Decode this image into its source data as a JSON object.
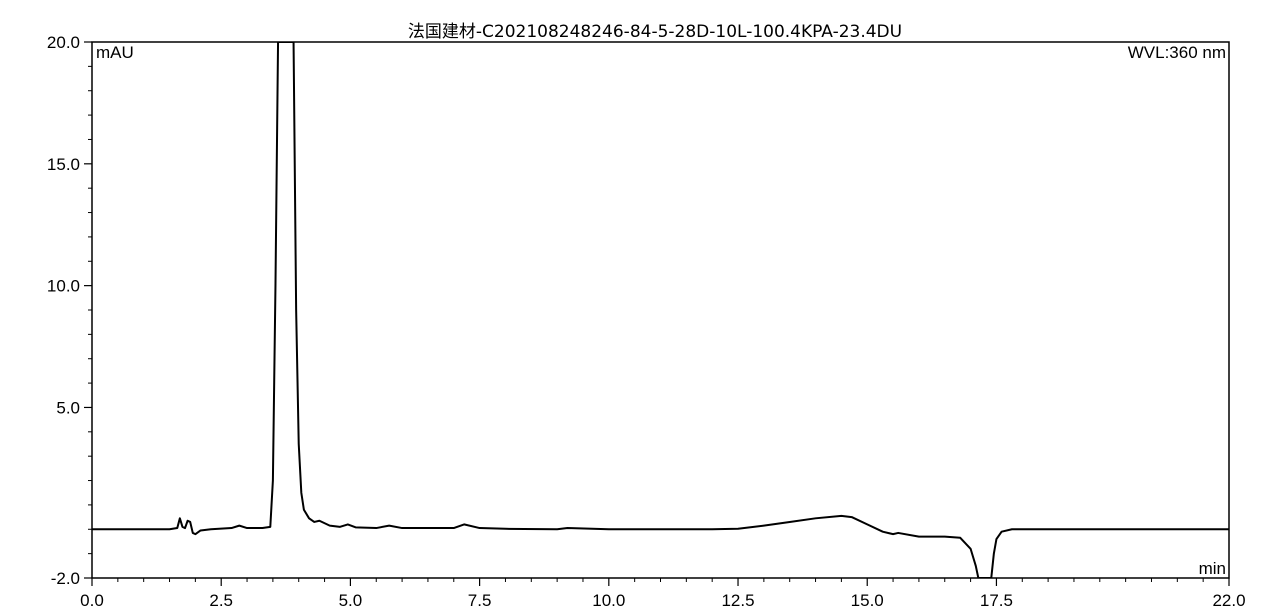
{
  "chart_data": {
    "type": "line",
    "title": "法国建材-C202108248246-84-5-28D-10L-100.4KPA-23.4DU",
    "y_unit": "mAU",
    "x_unit": "min",
    "wavelength_label": "WVL:360 nm",
    "xlim": [
      0,
      22
    ],
    "ylim": [
      -2,
      20
    ],
    "x_ticks": [
      "0.0",
      "2.5",
      "5.0",
      "7.5",
      "10.0",
      "12.5",
      "15.0",
      "17.5",
      "22.0"
    ],
    "x_tick_values": [
      0,
      2.5,
      5,
      7.5,
      10,
      12.5,
      15,
      17.5,
      22
    ],
    "y_ticks": [
      "20.0",
      "15.0",
      "10.0",
      "5.0",
      "-2.0"
    ],
    "y_tick_values": [
      20,
      15,
      10,
      5,
      -2
    ],
    "grid": false,
    "series": [
      {
        "line_color": "#000000",
        "x": [
          0,
          1.5,
          1.65,
          1.7,
          1.75,
          1.8,
          1.85,
          1.9,
          1.95,
          2.0,
          2.1,
          2.3,
          2.7,
          2.85,
          3.0,
          3.3,
          3.45,
          3.5,
          3.55,
          3.6,
          3.65,
          3.7,
          3.75,
          3.8,
          3.85,
          3.9,
          3.95,
          4.0,
          4.05,
          4.1,
          4.2,
          4.3,
          4.4,
          4.6,
          4.8,
          4.95,
          5.1,
          5.5,
          5.75,
          6.0,
          7.0,
          7.2,
          7.5,
          8.0,
          9.0,
          9.2,
          10.0,
          11.0,
          12.0,
          12.5,
          13.0,
          13.5,
          14.0,
          14.5,
          14.7,
          15.0,
          15.3,
          15.5,
          15.6,
          16.0,
          16.5,
          16.8,
          17.0,
          17.1,
          17.15,
          17.2,
          17.25,
          17.35,
          17.4,
          17.45,
          17.5,
          17.6,
          17.8,
          18.0,
          19.0,
          20.0,
          21.0,
          22.0
        ],
        "y": [
          0,
          0,
          0.05,
          0.45,
          0.1,
          0.05,
          0.35,
          0.3,
          -0.15,
          -0.2,
          -0.05,
          0.0,
          0.05,
          0.15,
          0.05,
          0.05,
          0.1,
          2.0,
          10.0,
          20.0,
          20.0,
          20.0,
          20.0,
          20.0,
          20.0,
          20.0,
          9.0,
          3.5,
          1.5,
          0.8,
          0.45,
          0.3,
          0.35,
          0.15,
          0.1,
          0.2,
          0.08,
          0.05,
          0.15,
          0.05,
          0.05,
          0.2,
          0.05,
          0.02,
          0.0,
          0.05,
          0.0,
          0.0,
          0.0,
          0.02,
          0.15,
          0.3,
          0.45,
          0.55,
          0.5,
          0.2,
          -0.1,
          -0.2,
          -0.15,
          -0.3,
          -0.3,
          -0.35,
          -0.8,
          -1.5,
          -2.0,
          -2.0,
          -2.0,
          -2.0,
          -2.0,
          -1.0,
          -0.4,
          -0.1,
          0.0,
          0.0,
          0.0,
          0.0,
          0.0,
          0.0
        ]
      }
    ]
  }
}
